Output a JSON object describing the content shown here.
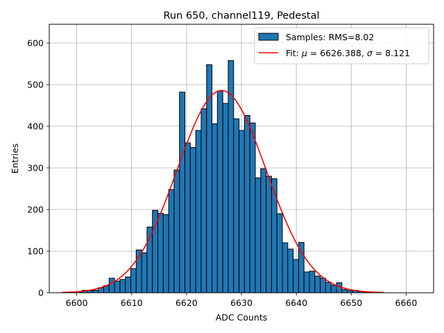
{
  "chart_data": {
    "type": "bar",
    "title": "Run 650, channel119, Pedestal",
    "xlabel": "ADC Counts",
    "ylabel": "Entries",
    "xlim": [
      6595,
      6665
    ],
    "ylim": [
      0,
      645
    ],
    "xticks": [
      6600,
      6610,
      6620,
      6630,
      6640,
      6650,
      6660
    ],
    "yticks": [
      0,
      100,
      200,
      300,
      400,
      500,
      600
    ],
    "grid": true,
    "legend_position": "upper-right",
    "legend": {
      "hist_label": "Samples: RMS=8.02",
      "fit_label_prefix": "Fit: ",
      "fit_mu_symbol": "μ",
      "fit_mu_text": " = 6626.388, ",
      "fit_sigma_symbol": "σ",
      "fit_sigma_text": " = 8.121"
    },
    "histogram": {
      "bin_start": 6599.0,
      "bin_width": 0.986,
      "counts": [
        2,
        3,
        6,
        5,
        6,
        12,
        17,
        35,
        28,
        32,
        38,
        58,
        103,
        96,
        158,
        198,
        191,
        188,
        248,
        295,
        482,
        360,
        349,
        390,
        442,
        548,
        406,
        485,
        455,
        558,
        418,
        390,
        426,
        408,
        276,
        298,
        280,
        274,
        190,
        120,
        105,
        80,
        121,
        50,
        52,
        40,
        35,
        25,
        18,
        24,
        8,
        5,
        6,
        3,
        2,
        1,
        1,
        0,
        0,
        0,
        0,
        0
      ],
      "fill": "#1f77b4",
      "edge": "#000000"
    },
    "fit": {
      "type": "gaussian",
      "mu": 6626.388,
      "sigma": 8.121,
      "amplitude": 486,
      "x_range": [
        6597.3,
        6656.0
      ],
      "color": "#ff0000"
    }
  }
}
